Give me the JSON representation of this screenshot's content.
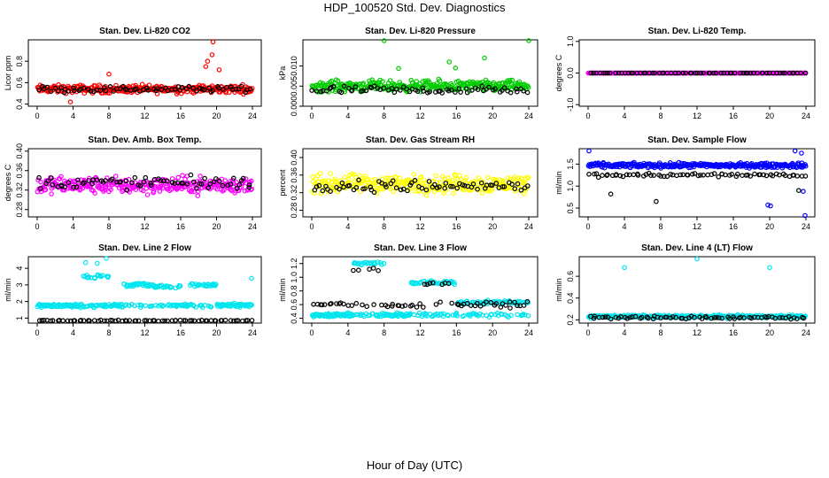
{
  "title": "HDP_100520  Std. Dev. Diagnostics",
  "xlabel": "Hour of Day (UTC)",
  "chart_data": [
    {
      "type": "scatter",
      "title": "Stan. Dev. Li-820 CO2",
      "xlabel": "",
      "ylabel": "Licor ppm",
      "xlim": [
        0,
        24
      ],
      "ylim": [
        0.38,
        1.0
      ],
      "xticks": [
        0,
        4,
        8,
        12,
        16,
        20,
        24
      ],
      "yticks": [
        0.4,
        0.6,
        0.8
      ],
      "yticklabels": [
        "0.4",
        "0.6",
        "0.8"
      ],
      "series": [
        {
          "color": "#ff0000",
          "level": 0.54,
          "spread": 0.055,
          "outliers": [
            [
              19.6,
              0.98
            ],
            [
              19.5,
              0.86
            ],
            [
              19.0,
              0.8
            ],
            [
              18.8,
              0.75
            ],
            [
              20.3,
              0.72
            ],
            [
              8.0,
              0.68
            ],
            [
              3.7,
              0.42
            ]
          ]
        },
        {
          "color": "#000000",
          "level": 0.54,
          "spread": 0.04
        }
      ]
    },
    {
      "type": "scatter",
      "title": "Stan. Dev. Li-820 Pressure",
      "xlabel": "",
      "ylabel": "kPa",
      "xlim": [
        0,
        24
      ],
      "ylim": [
        0,
        0.0165
      ],
      "xticks": [
        0,
        4,
        8,
        12,
        16,
        20,
        24
      ],
      "yticks": [
        0.0,
        0.005,
        0.01
      ],
      "yticklabels": [
        "0.000",
        "0.005",
        "0.010"
      ],
      "series": [
        {
          "color": "#00cc00",
          "level": 0.005,
          "spread": 0.002,
          "outliers": [
            [
              8.0,
              0.0163
            ],
            [
              24.0,
              0.0163
            ],
            [
              15.2,
              0.011
            ],
            [
              19.1,
              0.012
            ],
            [
              15.9,
              0.0095
            ],
            [
              9.6,
              0.0094
            ]
          ]
        },
        {
          "color": "#000000",
          "level": 0.004,
          "spread": 0.0015
        }
      ]
    },
    {
      "type": "scatter",
      "title": "Stan. Dev. Li-820 Temp.",
      "xlabel": "",
      "ylabel": "degrees C",
      "xlim": [
        0,
        24
      ],
      "ylim": [
        -1.05,
        1.05
      ],
      "xticks": [
        0,
        4,
        8,
        12,
        16,
        20,
        24
      ],
      "yticks": [
        -1.0,
        0.0,
        1.0
      ],
      "yticklabels": [
        "-1.0",
        "0.0",
        "1.0"
      ],
      "series": [
        {
          "color": "#ff00ff",
          "level": 0.0,
          "spread": 0.0
        },
        {
          "color": "#000000",
          "level": 0.0,
          "spread": 0.0
        }
      ]
    },
    {
      "type": "scatter",
      "title": "Stan. Dev. Amb. Box Temp.",
      "xlabel": "",
      "ylabel": "degrees C",
      "xlim": [
        0,
        24
      ],
      "ylim": [
        0.265,
        0.405
      ],
      "xticks": [
        0,
        4,
        8,
        12,
        16,
        20,
        24
      ],
      "yticks": [
        0.28,
        0.32,
        0.36,
        0.4
      ],
      "yticklabels": [
        "0.28",
        "0.32",
        "0.36",
        "0.40"
      ],
      "series": [
        {
          "color": "#ff00ff",
          "level": 0.33,
          "spread": 0.025
        },
        {
          "color": "#000000",
          "level": 0.335,
          "spread": 0.02
        }
      ]
    },
    {
      "type": "scatter",
      "title": "Stan. Dev. Gas Stream RH",
      "xlabel": "",
      "ylabel": "percent",
      "xlim": [
        0,
        24
      ],
      "ylim": [
        0.265,
        0.42
      ],
      "xticks": [
        0,
        4,
        8,
        12,
        16,
        20,
        24
      ],
      "yticks": [
        0.28,
        0.32,
        0.36,
        0.4
      ],
      "yticklabels": [
        "0.28",
        "0.32",
        "0.36",
        "0.40"
      ],
      "series": [
        {
          "color": "#ffff00",
          "level": 0.34,
          "spread": 0.03
        },
        {
          "color": "#000000",
          "level": 0.335,
          "spread": 0.02
        }
      ]
    },
    {
      "type": "scatter",
      "title": "Stan. Dev. Sample Flow",
      "xlabel": "",
      "ylabel": "ml/min",
      "xlim": [
        0,
        24
      ],
      "ylim": [
        0.3,
        1.85
      ],
      "xticks": [
        0,
        4,
        8,
        12,
        16,
        20,
        24
      ],
      "yticks": [
        0.5,
        1.0,
        1.5
      ],
      "yticklabels": [
        "0.5",
        "1.0",
        "1.5"
      ],
      "series": [
        {
          "color": "#0000ff",
          "level": 1.47,
          "spread": 0.08,
          "outliers": [
            [
              23.9,
              0.33
            ],
            [
              20.1,
              0.55
            ],
            [
              19.8,
              0.57
            ],
            [
              23.7,
              0.88
            ],
            [
              0.1,
              1.8
            ],
            [
              23.5,
              1.75
            ],
            [
              22.8,
              1.8
            ]
          ]
        },
        {
          "color": "#000000",
          "level": 1.25,
          "spread": 0.07,
          "outliers": [
            [
              2.5,
              0.82
            ],
            [
              7.5,
              0.65
            ],
            [
              23.2,
              0.9
            ]
          ]
        }
      ]
    },
    {
      "type": "scatter",
      "title": "Stan. Dev. Line 2 Flow",
      "xlabel": "",
      "ylabel": "ml/min",
      "xlim": [
        0,
        24
      ],
      "ylim": [
        0.7,
        4.7
      ],
      "xticks": [
        0,
        4,
        8,
        12,
        16,
        20,
        24
      ],
      "yticks": [
        1,
        2,
        3,
        4
      ],
      "yticklabels": [
        "1",
        "2",
        "3",
        "4"
      ],
      "series": [
        {
          "color": "#00e5ee",
          "level": 1.75,
          "spread": 0.15,
          "segments": [
            [
              5,
              8,
              3.5
            ],
            [
              9.5,
              13,
              3.0
            ],
            [
              13,
              16,
              2.9
            ],
            [
              17,
              20,
              3.0
            ],
            [
              20,
              24,
              1.8
            ]
          ],
          "outliers": [
            [
              7.7,
              4.6
            ],
            [
              6.7,
              4.3
            ],
            [
              5.4,
              4.35
            ],
            [
              23.9,
              3.4
            ]
          ]
        },
        {
          "color": "#000000",
          "level": 0.85,
          "spread": 0.04
        }
      ]
    },
    {
      "type": "scatter",
      "title": "Stan. Dev. Line 3 Flow",
      "xlabel": "",
      "ylabel": "ml/min",
      "xlim": [
        0,
        24
      ],
      "ylim": [
        0.33,
        1.3
      ],
      "xticks": [
        0,
        4,
        8,
        12,
        16,
        20,
        24
      ],
      "yticks": [
        0.4,
        0.6,
        0.8,
        1.0,
        1.2
      ],
      "yticklabels": [
        "0.4",
        "0.6",
        "0.8",
        "1.0",
        "1.2"
      ],
      "series": [
        {
          "color": "#00e5ee",
          "level": 0.45,
          "spread": 0.04,
          "segments": [
            [
              4.5,
              8,
              1.2
            ],
            [
              11,
              16,
              0.92
            ],
            [
              16,
              20,
              0.63
            ],
            [
              20,
              24,
              0.63
            ]
          ]
        },
        {
          "color": "#000000",
          "level": 0.6,
          "spread": 0.06,
          "segments": [
            [
              4.5,
              8,
              1.1
            ],
            [
              11,
              16,
              0.9
            ]
          ]
        }
      ]
    },
    {
      "type": "scatter",
      "title": "Stan. Dev. Line 4 (LT) Flow",
      "xlabel": "",
      "ylabel": "ml/min",
      "xlim": [
        0,
        24
      ],
      "ylim": [
        0.17,
        0.78
      ],
      "xticks": [
        0,
        4,
        8,
        12,
        16,
        20,
        24
      ],
      "yticks": [
        0.2,
        0.4,
        0.6
      ],
      "yticklabels": [
        "0.2",
        "0.4",
        "0.6"
      ],
      "series": [
        {
          "color": "#00e5ee",
          "level": 0.23,
          "spread": 0.02,
          "outliers": [
            [
              4.0,
              0.68
            ],
            [
              12.0,
              0.76
            ],
            [
              20.0,
              0.68
            ]
          ]
        },
        {
          "color": "#000000",
          "level": 0.22,
          "spread": 0.02
        }
      ]
    }
  ]
}
